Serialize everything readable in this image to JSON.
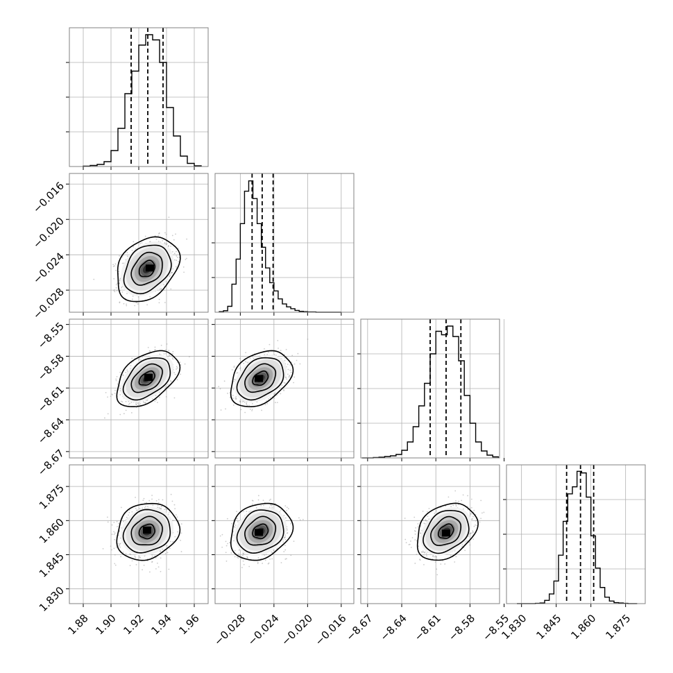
{
  "figure": {
    "type": "corner-plot",
    "parameter_count": 4
  },
  "colors": {
    "line": "#000000",
    "grid": "#b0b0b0",
    "frame": "#808080",
    "scatter": "#9e9e9e",
    "density_dark": "#000000",
    "background": "#ffffff"
  },
  "chart_data": [
    {
      "panel": "hist-p1",
      "type": "histogram-step",
      "row": 0,
      "col": 0,
      "bin_width": 0.005,
      "x": [
        1.8825,
        1.8875,
        1.8925,
        1.8975,
        1.9025,
        1.9075,
        1.9125,
        1.9175,
        1.9225,
        1.9275,
        1.9325,
        1.9375,
        1.9425,
        1.9475,
        1.9525,
        1.9575,
        1.9625
      ],
      "counts": [
        1,
        3,
        6,
        14,
        46,
        110,
        210,
        275,
        350,
        380,
        365,
        300,
        170,
        88,
        30,
        9,
        2
      ],
      "quantiles": [
        1.9145,
        1.9265,
        1.9375
      ],
      "xlim": [
        1.87,
        1.97
      ],
      "ylim": [
        0,
        400
      ],
      "xticks": [
        1.88,
        1.9,
        1.92,
        1.94,
        1.96
      ],
      "yticks": [],
      "grid": true
    },
    {
      "panel": "hist-p2",
      "type": "histogram-step",
      "row": 1,
      "col": 1,
      "bin_width": 0.0005,
      "x": [
        -0.03025,
        -0.02975,
        -0.02925,
        -0.02875,
        -0.02825,
        -0.02775,
        -0.02725,
        -0.02675,
        -0.02625,
        -0.02575,
        -0.02525,
        -0.02475,
        -0.02425,
        -0.02375,
        -0.02325,
        -0.02275,
        -0.02225,
        -0.02175,
        -0.02125,
        -0.02075,
        -0.02025,
        -0.01975,
        -0.01925,
        -0.01875,
        -0.01825,
        -0.01775,
        -0.01725,
        -0.01675,
        -0.01625
      ],
      "counts": [
        2,
        5,
        20,
        95,
        180,
        300,
        410,
        445,
        385,
        300,
        220,
        150,
        100,
        72,
        45,
        28,
        18,
        12,
        6,
        3,
        2,
        1,
        1,
        0,
        0,
        0,
        0,
        0,
        0
      ],
      "quantiles": [
        -0.0266,
        -0.0254,
        -0.0241
      ],
      "xlim": [
        -0.031,
        -0.0145
      ],
      "ylim": [
        0,
        470
      ],
      "xticks": [
        -0.028,
        -0.024,
        -0.02,
        -0.016
      ],
      "yticks": [],
      "grid": true
    },
    {
      "panel": "hist-p3",
      "type": "histogram-step",
      "row": 2,
      "col": 2,
      "bin_width": 0.005,
      "x": [
        -8.6725,
        -8.6675,
        -8.6625,
        -8.6575,
        -8.6525,
        -8.6475,
        -8.6425,
        -8.6375,
        -8.6325,
        -8.6275,
        -8.6225,
        -8.6175,
        -8.6125,
        -8.6075,
        -8.6025,
        -8.5975,
        -8.5925,
        -8.5875,
        -8.5825,
        -8.5775,
        -8.5725,
        -8.5675,
        -8.5625,
        -8.5575
      ],
      "counts": [
        0,
        0,
        1,
        2,
        4,
        6,
        10,
        22,
        46,
        90,
        150,
        215,
        300,
        365,
        355,
        380,
        350,
        280,
        180,
        100,
        46,
        20,
        8,
        3
      ],
      "quantiles": [
        -8.615,
        -8.601,
        -8.588
      ],
      "xlim": [
        -8.676,
        -8.554
      ],
      "ylim": [
        0,
        400
      ],
      "xticks": [
        -8.67,
        -8.64,
        -8.61,
        -8.58,
        -8.55
      ],
      "yticks": [],
      "grid": true
    },
    {
      "panel": "hist-p4",
      "type": "histogram-step",
      "row": 3,
      "col": 3,
      "bin_width": 0.002,
      "x": [
        1.829,
        1.831,
        1.833,
        1.835,
        1.837,
        1.839,
        1.841,
        1.843,
        1.845,
        1.847,
        1.849,
        1.851,
        1.853,
        1.855,
        1.857,
        1.859,
        1.861,
        1.863,
        1.865,
        1.867,
        1.869,
        1.871,
        1.873,
        1.875,
        1.877,
        1.879
      ],
      "counts": [
        0,
        0,
        0,
        0,
        1,
        2,
        10,
        30,
        70,
        150,
        255,
        340,
        362,
        410,
        405,
        330,
        210,
        110,
        50,
        20,
        8,
        3,
        2,
        1,
        0,
        0
      ],
      "quantiles": [
        1.8495,
        1.8555,
        1.8612
      ],
      "xlim": [
        1.8235,
        1.8835
      ],
      "ylim": [
        0,
        430
      ],
      "xticks": [
        1.83,
        1.845,
        1.86,
        1.875
      ],
      "yticks": [],
      "grid": true
    },
    {
      "panel": "joint-p1-p2",
      "type": "scatter-density-contour",
      "row": 1,
      "col": 0,
      "mean": [
        1.926,
        -0.0256
      ],
      "sd": [
        0.0095,
        0.00155
      ],
      "correlation": 0.3,
      "peak": [
        1.928,
        -0.0255
      ],
      "contour_levels_sigma": [
        0.5,
        1.0,
        1.5,
        2.0
      ],
      "xlim": [
        1.87,
        1.97
      ],
      "ylim": [
        -0.0305,
        -0.0148
      ],
      "xticks": [
        1.88,
        1.9,
        1.92,
        1.94,
        1.96
      ],
      "yticks": [
        -0.028,
        -0.024,
        -0.02,
        -0.016
      ],
      "grid": true
    },
    {
      "panel": "joint-p1-p3",
      "type": "scatter-density-contour",
      "row": 2,
      "col": 0,
      "mean": [
        1.926,
        -8.601
      ],
      "sd": [
        0.0095,
        0.0112
      ],
      "correlation": 0.45,
      "peak": [
        1.927,
        -8.6
      ],
      "contour_levels_sigma": [
        0.5,
        1.0,
        1.5,
        2.0
      ],
      "xlim": [
        1.87,
        1.97
      ],
      "ylim": [
        -8.676,
        -8.545
      ],
      "xticks": [
        1.88,
        1.9,
        1.92,
        1.94,
        1.96
      ],
      "yticks": [
        -8.67,
        -8.64,
        -8.61,
        -8.58,
        -8.55
      ],
      "grid": true
    },
    {
      "panel": "joint-p2-p3",
      "type": "scatter-density-contour",
      "row": 2,
      "col": 1,
      "mean": [
        -0.0256,
        -8.601
      ],
      "sd": [
        0.00155,
        0.0112
      ],
      "correlation": 0.35,
      "peak": [
        -0.0258,
        -8.601
      ],
      "contour_levels_sigma": [
        0.5,
        1.0,
        1.5,
        2.0
      ],
      "xlim": [
        -0.031,
        -0.0145
      ],
      "ylim": [
        -8.676,
        -8.545
      ],
      "xticks": [
        -0.028,
        -0.024,
        -0.02,
        -0.016
      ],
      "yticks": [
        -8.67,
        -8.64,
        -8.61,
        -8.58,
        -8.55
      ],
      "grid": true
    },
    {
      "panel": "joint-p1-p4",
      "type": "scatter-density-contour",
      "row": 3,
      "col": 0,
      "mean": [
        1.926,
        1.8552
      ],
      "sd": [
        0.0095,
        0.0053
      ],
      "correlation": 0.15,
      "peak": [
        1.926,
        1.8558
      ],
      "contour_levels_sigma": [
        0.5,
        1.0,
        1.5,
        2.0
      ],
      "xlim": [
        1.87,
        1.97
      ],
      "ylim": [
        1.8235,
        1.8845
      ],
      "xticks": [
        1.88,
        1.9,
        1.92,
        1.94,
        1.96
      ],
      "yticks": [
        1.83,
        1.845,
        1.86,
        1.875
      ],
      "grid": true
    },
    {
      "panel": "joint-p2-p4",
      "type": "scatter-density-contour",
      "row": 3,
      "col": 1,
      "mean": [
        -0.0256,
        1.8552
      ],
      "sd": [
        0.00155,
        0.0053
      ],
      "correlation": 0.2,
      "peak": [
        -0.0258,
        1.8548
      ],
      "contour_levels_sigma": [
        0.5,
        1.0,
        1.5,
        2.0
      ],
      "xlim": [
        -0.031,
        -0.0145
      ],
      "ylim": [
        1.8235,
        1.8845
      ],
      "xticks": [
        -0.028,
        -0.024,
        -0.02,
        -0.016
      ],
      "yticks": [
        1.83,
        1.845,
        1.86,
        1.875
      ],
      "grid": true
    },
    {
      "panel": "joint-p3-p4",
      "type": "scatter-density-contour",
      "row": 3,
      "col": 2,
      "mean": [
        -8.601,
        1.8552
      ],
      "sd": [
        0.0112,
        0.0053
      ],
      "correlation": 0.3,
      "peak": [
        -8.601,
        1.8545
      ],
      "contour_levels_sigma": [
        0.5,
        1.0,
        1.5,
        2.0
      ],
      "xlim": [
        -8.676,
        -8.554
      ],
      "ylim": [
        1.8235,
        1.8845
      ],
      "xticks": [
        -8.67,
        -8.64,
        -8.61,
        -8.58,
        -8.55
      ],
      "yticks": [
        1.83,
        1.845,
        1.86,
        1.875
      ],
      "grid": true
    }
  ]
}
